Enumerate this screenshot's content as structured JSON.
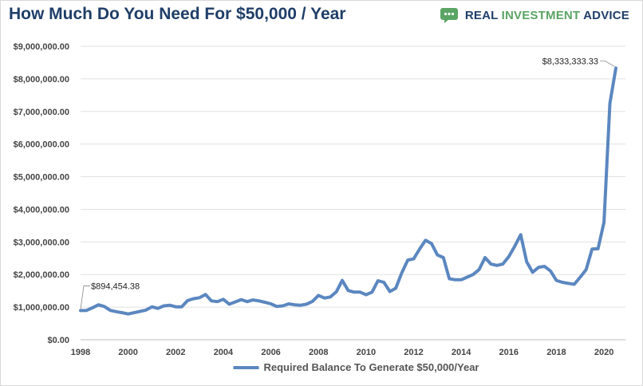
{
  "title": "How Much Do You Need For $50,000 / Year",
  "brand": {
    "word1": "REAL",
    "word2": "INVESTMENT",
    "word3": "ADVICE",
    "icon": "chat-bubble-logo-icon",
    "accent_color": "#5aa464",
    "text_color": "#1f3e68"
  },
  "chart_data": {
    "type": "line",
    "title": "How Much Do You Need For $50,000 / Year",
    "xlabel": "",
    "ylabel": "",
    "xlim": [
      1998,
      2020.5
    ],
    "ylim": [
      0,
      9000000
    ],
    "grid": true,
    "legend_position": "bottom",
    "x_ticks": [
      "1998",
      "2000",
      "2002",
      "2004",
      "2006",
      "2008",
      "2010",
      "2012",
      "2014",
      "2016",
      "2018",
      "2020"
    ],
    "y_ticks": [
      "$0.00",
      "$1,000,000.00",
      "$2,000,000.00",
      "$3,000,000.00",
      "$4,000,000.00",
      "$5,000,000.00",
      "$6,000,000.00",
      "$7,000,000.00",
      "$8,000,000.00",
      "$9,000,000.00"
    ],
    "series": [
      {
        "name": "Required Balance To Generate $50,000/Year",
        "color": "#5b87c0",
        "x": [
          1998,
          1998.25,
          1998.5,
          1998.75,
          1999,
          1999.25,
          1999.5,
          1999.75,
          2000,
          2000.25,
          2000.5,
          2000.75,
          2001,
          2001.25,
          2001.5,
          2001.75,
          2002,
          2002.25,
          2002.5,
          2002.75,
          2003,
          2003.25,
          2003.5,
          2003.75,
          2004,
          2004.25,
          2004.5,
          2004.75,
          2005,
          2005.25,
          2005.5,
          2005.75,
          2006,
          2006.25,
          2006.5,
          2006.75,
          2007,
          2007.25,
          2007.5,
          2007.75,
          2008,
          2008.25,
          2008.5,
          2008.75,
          2009,
          2009.25,
          2009.5,
          2009.75,
          2010,
          2010.25,
          2010.5,
          2010.75,
          2011,
          2011.25,
          2011.5,
          2011.75,
          2012,
          2012.25,
          2012.5,
          2012.75,
          2013,
          2013.25,
          2013.5,
          2013.75,
          2014,
          2014.25,
          2014.5,
          2014.75,
          2015,
          2015.25,
          2015.5,
          2015.75,
          2016,
          2016.25,
          2016.5,
          2016.75,
          2017,
          2017.25,
          2017.5,
          2017.75,
          2018,
          2018.25,
          2018.5,
          2018.75,
          2019,
          2019.25,
          2019.5,
          2019.75,
          2020,
          2020.25,
          2020.5
        ],
        "values": [
          894454.38,
          900000,
          980000,
          1070000,
          1020000,
          900000,
          860000,
          830000,
          790000,
          830000,
          870000,
          910000,
          1010000,
          960000,
          1040000,
          1060000,
          1010000,
          1010000,
          1200000,
          1260000,
          1290000,
          1390000,
          1190000,
          1170000,
          1240000,
          1090000,
          1160000,
          1230000,
          1170000,
          1220000,
          1190000,
          1150000,
          1100000,
          1020000,
          1040000,
          1100000,
          1070000,
          1060000,
          1090000,
          1180000,
          1360000,
          1280000,
          1310000,
          1470000,
          1820000,
          1510000,
          1460000,
          1460000,
          1380000,
          1460000,
          1810000,
          1760000,
          1480000,
          1580000,
          2050000,
          2440000,
          2480000,
          2780000,
          3050000,
          2950000,
          2600000,
          2520000,
          1870000,
          1840000,
          1840000,
          1920000,
          2000000,
          2150000,
          2520000,
          2320000,
          2280000,
          2320000,
          2550000,
          2870000,
          3220000,
          2390000,
          2070000,
          2220000,
          2250000,
          2110000,
          1820000,
          1760000,
          1730000,
          1700000,
          1920000,
          2150000,
          2780000,
          2790000,
          3600000,
          7250000,
          8333333.33
        ]
      }
    ],
    "annotations": [
      {
        "text": "$894,454.38",
        "x": 1998,
        "y": 894454.38
      },
      {
        "text": "$8,333,333.33",
        "x": 2020.5,
        "y": 8333333.33
      }
    ]
  }
}
